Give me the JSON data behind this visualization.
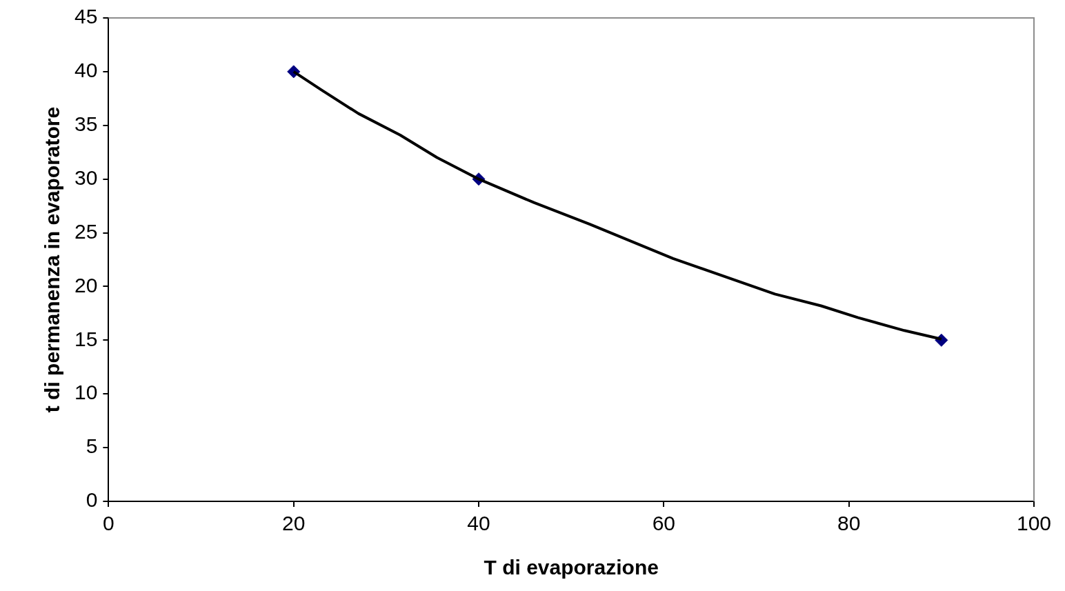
{
  "chart_data": {
    "type": "scatter",
    "xlabel": "T di evaporazione",
    "ylabel": "t di permanenza in evaporatore",
    "xlim": [
      0,
      100
    ],
    "xticks": [
      0,
      20,
      40,
      60,
      80,
      100
    ],
    "ylim": [
      0,
      45
    ],
    "yticks": [
      0,
      5,
      10,
      15,
      20,
      25,
      30,
      35,
      40,
      45
    ],
    "grid": false,
    "legend": false,
    "series": [
      {
        "type": "line",
        "color": "#000000",
        "marker": "none",
        "line_style": "solid",
        "x": [
          20,
          23,
          27,
          31.5,
          35.5,
          40,
          46,
          52,
          61,
          72,
          77,
          81,
          86,
          90
        ],
        "values": [
          40,
          38.3,
          36.1,
          34.1,
          32.0,
          30.0,
          27.8,
          25.8,
          22.6,
          19.3,
          18.2,
          17.1,
          15.9,
          15.1
        ]
      },
      {
        "color": "#000080",
        "marker": "diamond",
        "x": [
          20,
          40,
          90
        ],
        "values": [
          40,
          30,
          15
        ]
      }
    ]
  }
}
